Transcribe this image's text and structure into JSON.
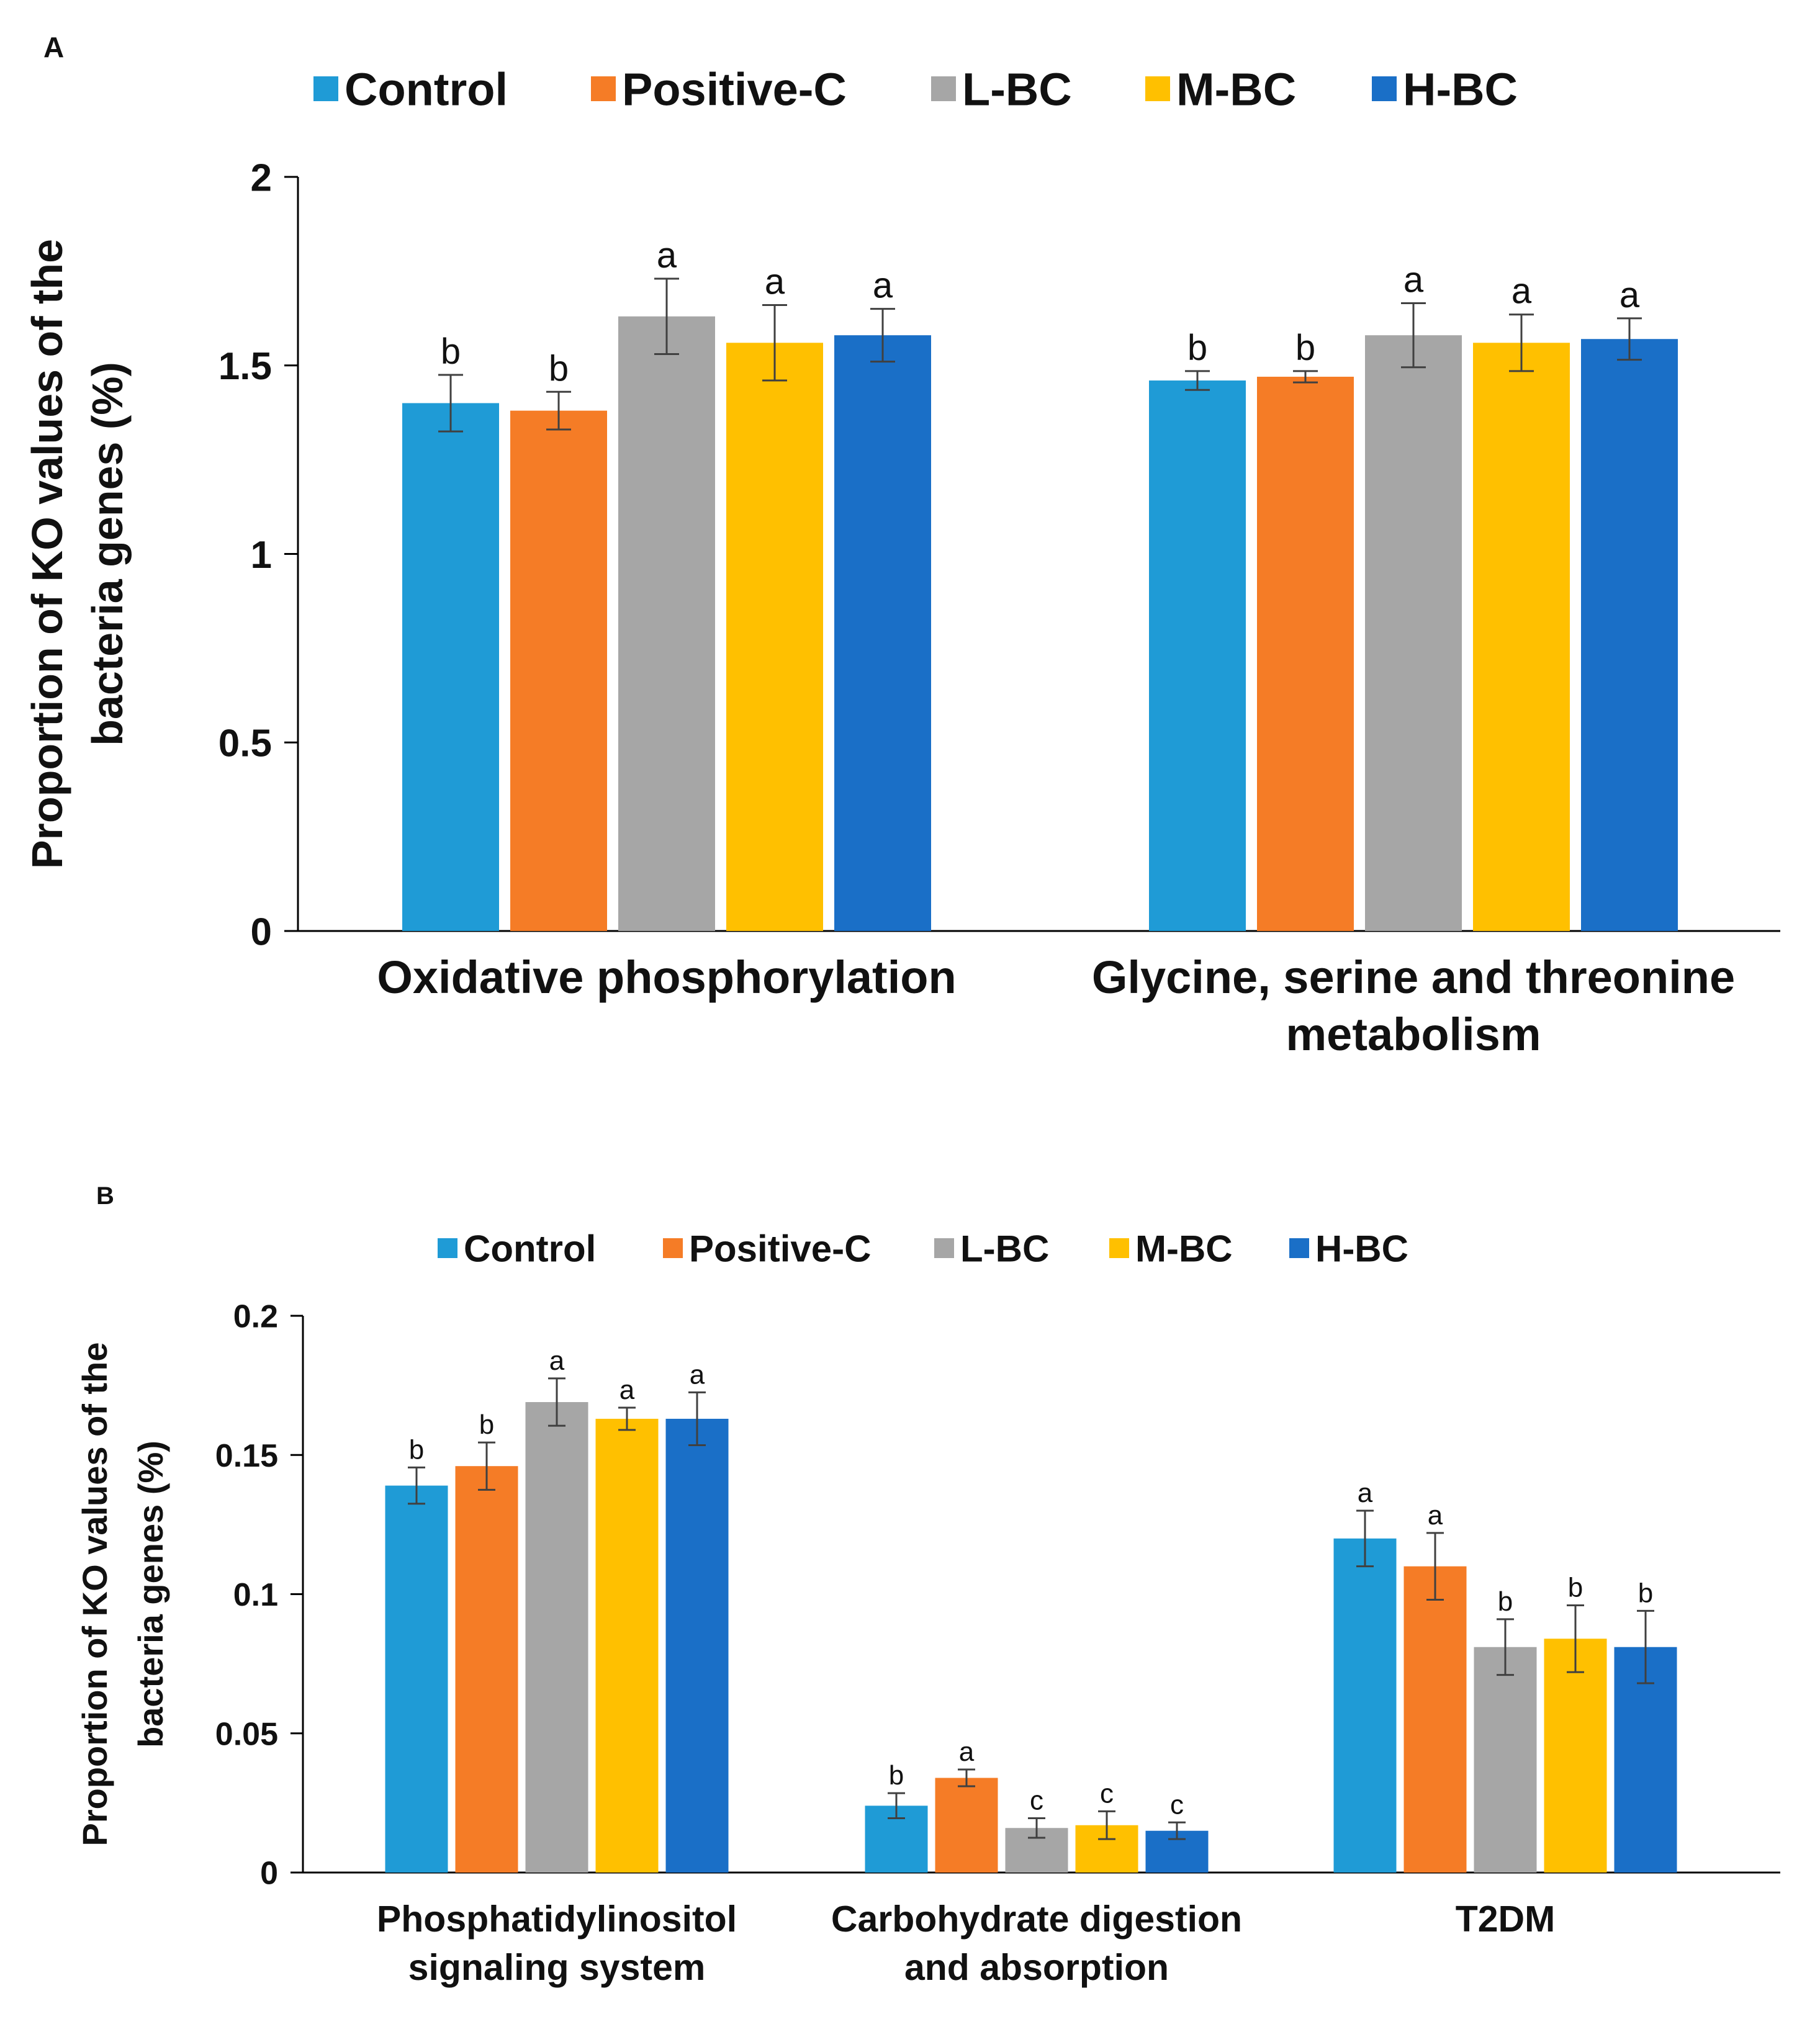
{
  "colors": {
    "Control": "#1F9BD6",
    "Positive-C": "#F57C26",
    "L-BC": "#A6A6A6",
    "M-BC": "#FFC000",
    "H-BC": "#1A6FC7"
  },
  "chart_data": [
    {
      "panel": "A",
      "type": "bar",
      "legend": [
        "Control",
        "Positive-C",
        "L-BC",
        "M-BC",
        "H-BC"
      ],
      "legend_position": "top",
      "ylabel_lines": [
        "Proportion of KO values of the",
        "bacteria genes (%)"
      ],
      "ylim": [
        0,
        2
      ],
      "yticks": [
        0,
        0.5,
        1,
        1.5,
        2
      ],
      "ytick_labels": [
        "0",
        "0.5",
        "1",
        "1.5",
        "2"
      ],
      "categories": [
        {
          "lines": [
            "Oxidative phosphorylation"
          ]
        },
        {
          "lines": [
            "Glycine, serine and threonine",
            "metabolism"
          ]
        }
      ],
      "series": [
        {
          "name": "Control",
          "values": [
            1.4,
            1.46
          ],
          "errors": [
            0.075,
            0.025
          ],
          "letters": [
            "b",
            "b"
          ]
        },
        {
          "name": "Positive-C",
          "values": [
            1.38,
            1.47
          ],
          "errors": [
            0.05,
            0.015
          ],
          "letters": [
            "b",
            "b"
          ]
        },
        {
          "name": "L-BC",
          "values": [
            1.63,
            1.58
          ],
          "errors": [
            0.1,
            0.085
          ],
          "letters": [
            "a",
            "a"
          ]
        },
        {
          "name": "M-BC",
          "values": [
            1.56,
            1.56
          ],
          "errors": [
            0.1,
            0.075
          ],
          "letters": [
            "a",
            "a"
          ]
        },
        {
          "name": "H-BC",
          "values": [
            1.58,
            1.57
          ],
          "errors": [
            0.07,
            0.055
          ],
          "letters": [
            "a",
            "a"
          ]
        }
      ]
    },
    {
      "panel": "B",
      "type": "bar",
      "legend": [
        "Control",
        "Positive-C",
        "L-BC",
        "M-BC",
        "H-BC"
      ],
      "legend_position": "top",
      "ylabel_lines": [
        "Proportion of KO values of the",
        "bacteria genes (%)"
      ],
      "ylim": [
        0,
        0.2
      ],
      "yticks": [
        0,
        0.05,
        0.1,
        0.15,
        0.2
      ],
      "ytick_labels": [
        "0",
        "0.05",
        "0.1",
        "0.15",
        "0.2"
      ],
      "categories": [
        {
          "lines": [
            "Phosphatidylinositol",
            "signaling system"
          ]
        },
        {
          "lines": [
            "Carbohydrate digestion",
            "and absorption"
          ]
        },
        {
          "lines": [
            "T2DM"
          ]
        }
      ],
      "series": [
        {
          "name": "Control",
          "values": [
            0.139,
            0.024,
            0.12
          ],
          "errors": [
            0.0065,
            0.0045,
            0.01
          ],
          "letters": [
            "b",
            "b",
            "a"
          ]
        },
        {
          "name": "Positive-C",
          "values": [
            0.146,
            0.034,
            0.11
          ],
          "errors": [
            0.0085,
            0.003,
            0.012
          ],
          "letters": [
            "b",
            "a",
            "a"
          ]
        },
        {
          "name": "L-BC",
          "values": [
            0.169,
            0.016,
            0.081
          ],
          "errors": [
            0.0085,
            0.0035,
            0.01
          ],
          "letters": [
            "a",
            "c",
            "b"
          ]
        },
        {
          "name": "M-BC",
          "values": [
            0.163,
            0.017,
            0.084
          ],
          "errors": [
            0.004,
            0.005,
            0.012
          ],
          "letters": [
            "a",
            "c",
            "b"
          ]
        },
        {
          "name": "H-BC",
          "values": [
            0.163,
            0.015,
            0.081
          ],
          "errors": [
            0.0095,
            0.003,
            0.013
          ],
          "letters": [
            "a",
            "c",
            "b"
          ]
        }
      ]
    }
  ]
}
